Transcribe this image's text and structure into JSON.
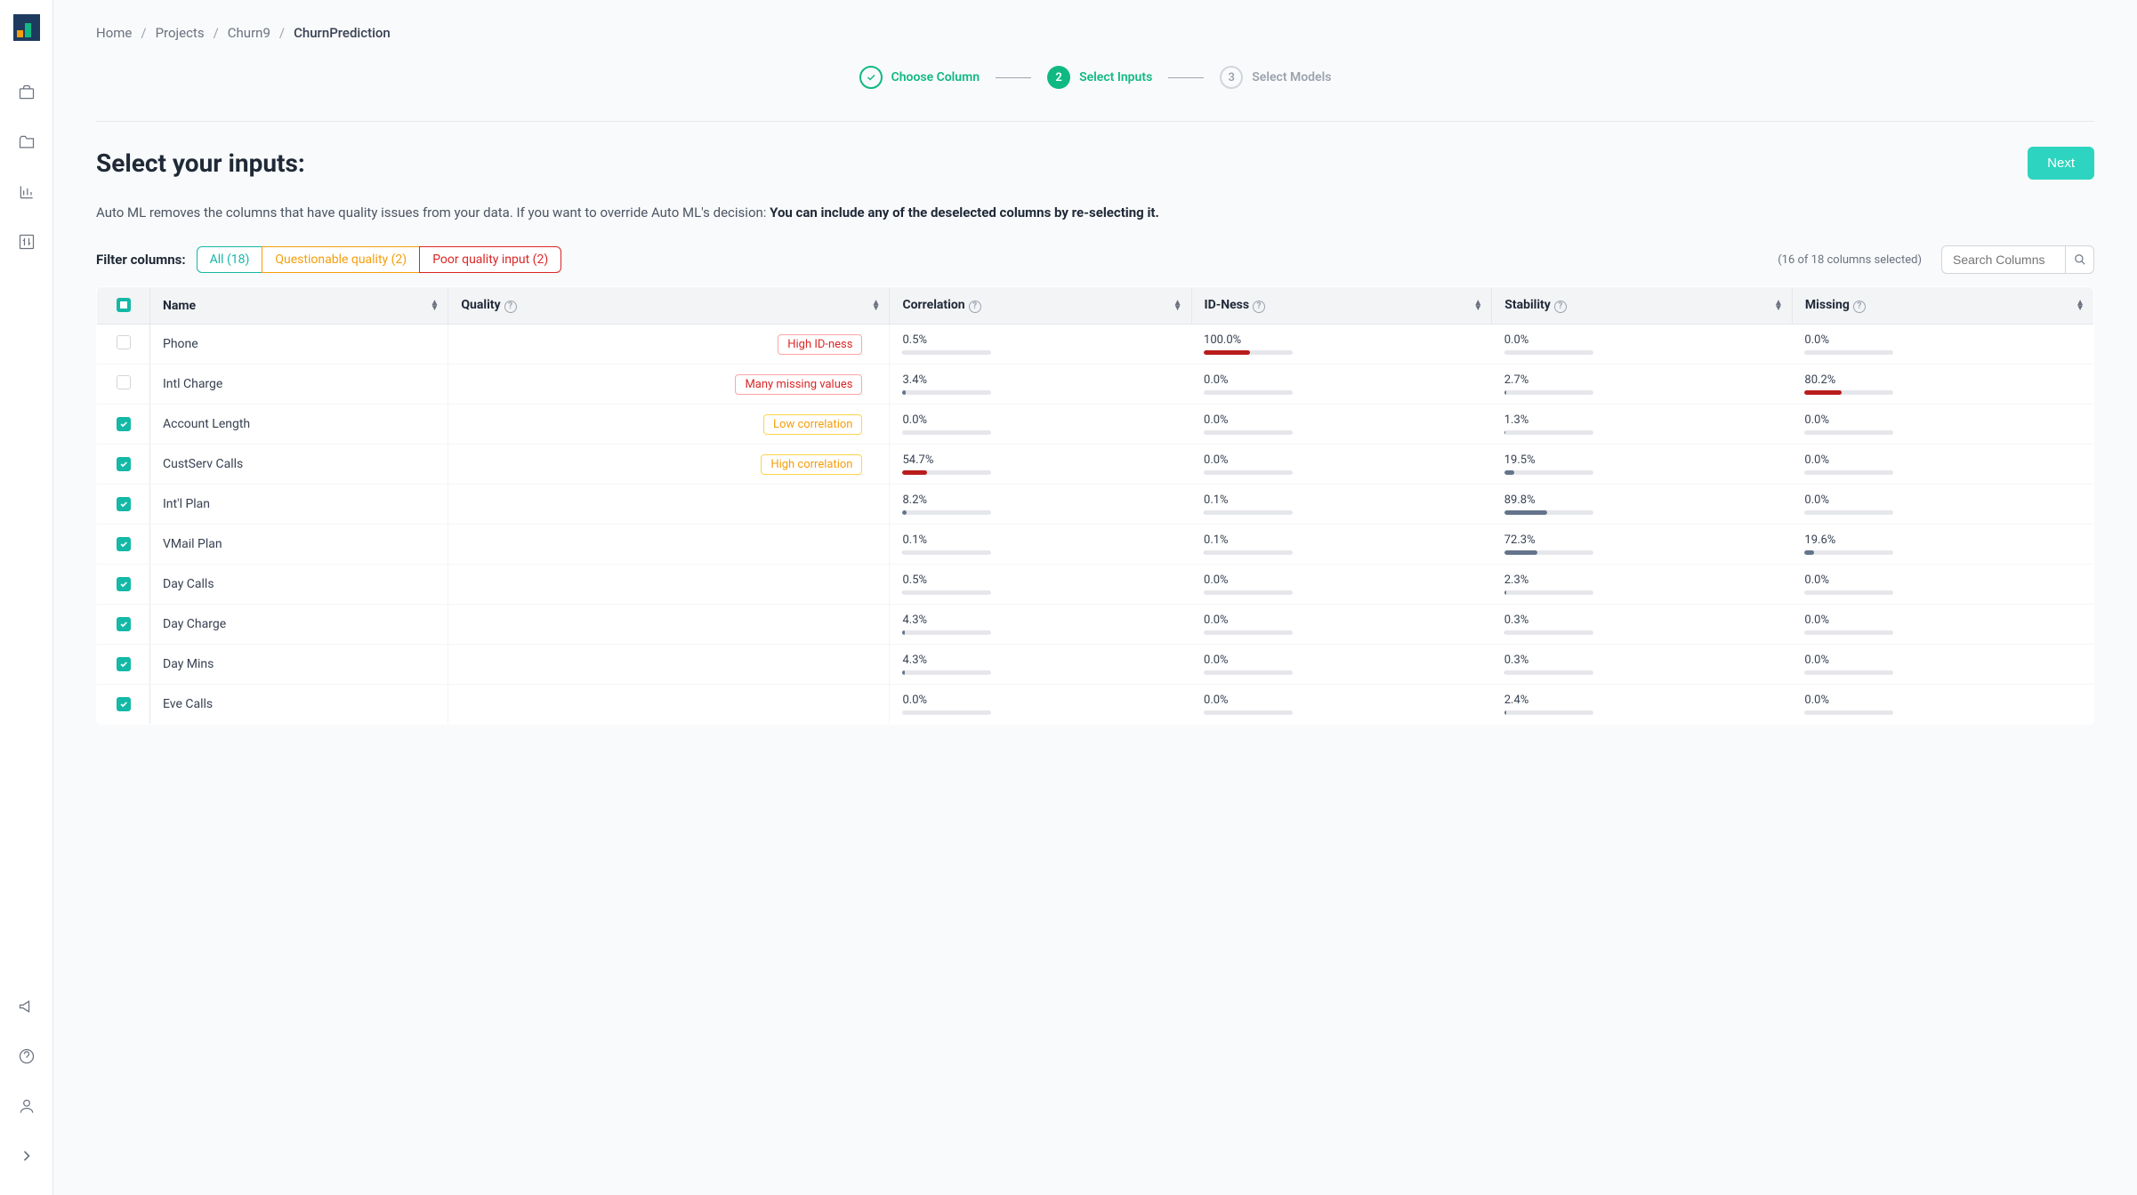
{
  "breadcrumb": {
    "home": "Home",
    "projects": "Projects",
    "project": "Churn9",
    "current": "ChurnPrediction"
  },
  "stepper": {
    "s1": "Choose Column",
    "s2": "Select Inputs",
    "s3": "Select Models"
  },
  "title": "Select your inputs:",
  "next": "Next",
  "description_prefix": "Auto ML removes the columns that have quality issues from your data. If you want to override Auto ML's decision: ",
  "description_bold": "You can include any of the deselected columns by re-selecting it.",
  "filter_label": "Filter columns:",
  "filters": {
    "all": "All (18)",
    "questionable": "Questionable quality (2)",
    "poor": "Poor quality input (2)"
  },
  "selection_summary": "(16 of 18 columns selected)",
  "search_placeholder": "Search Columns",
  "columns": {
    "name": "Name",
    "quality": "Quality",
    "correlation": "Correlation",
    "idness": "ID-Ness",
    "stability": "Stability",
    "missing": "Missing"
  },
  "rows": [
    {
      "checked": false,
      "name": "Phone",
      "tag": "High ID-ness",
      "tag_color": "red",
      "corr": "0.5%",
      "corr_w": 0.5,
      "corr_c": "gray",
      "id": "100.0%",
      "id_w": 52,
      "id_c": "red",
      "stab": "0.0%",
      "stab_w": 0,
      "stab_c": "gray",
      "miss": "0.0%",
      "miss_w": 0,
      "miss_c": "gray"
    },
    {
      "checked": false,
      "name": "Intl Charge",
      "tag": "Many missing values",
      "tag_color": "red",
      "corr": "3.4%",
      "corr_w": 3.4,
      "corr_c": "blue",
      "id": "0.0%",
      "id_w": 0,
      "id_c": "gray",
      "stab": "2.7%",
      "stab_w": 2.7,
      "stab_c": "blue",
      "miss": "80.2%",
      "miss_w": 42,
      "miss_c": "red"
    },
    {
      "checked": true,
      "name": "Account Length",
      "tag": "Low correlation",
      "tag_color": "orange",
      "corr": "0.0%",
      "corr_w": 0,
      "corr_c": "gray",
      "id": "0.0%",
      "id_w": 0,
      "id_c": "gray",
      "stab": "1.3%",
      "stab_w": 1.3,
      "stab_c": "blue",
      "miss": "0.0%",
      "miss_w": 0,
      "miss_c": "gray"
    },
    {
      "checked": true,
      "name": "CustServ Calls",
      "tag": "High correlation",
      "tag_color": "orange",
      "corr": "54.7%",
      "corr_w": 28,
      "corr_c": "red",
      "id": "0.0%",
      "id_w": 0,
      "id_c": "gray",
      "stab": "19.5%",
      "stab_w": 11,
      "stab_c": "blue",
      "miss": "0.0%",
      "miss_w": 0,
      "miss_c": "gray"
    },
    {
      "checked": true,
      "name": "Int'l Plan",
      "tag": "",
      "tag_color": "",
      "corr": "8.2%",
      "corr_w": 4.5,
      "corr_c": "blue",
      "id": "0.1%",
      "id_w": 0.5,
      "id_c": "gray",
      "stab": "89.8%",
      "stab_w": 48,
      "stab_c": "blue",
      "miss": "0.0%",
      "miss_w": 0,
      "miss_c": "gray"
    },
    {
      "checked": true,
      "name": "VMail Plan",
      "tag": "",
      "tag_color": "",
      "corr": "0.1%",
      "corr_w": 0.5,
      "corr_c": "gray",
      "id": "0.1%",
      "id_w": 0.5,
      "id_c": "gray",
      "stab": "72.3%",
      "stab_w": 37,
      "stab_c": "blue",
      "miss": "19.6%",
      "miss_w": 11,
      "miss_c": "blue"
    },
    {
      "checked": true,
      "name": "Day Calls",
      "tag": "",
      "tag_color": "",
      "corr": "0.5%",
      "corr_w": 0.5,
      "corr_c": "gray",
      "id": "0.0%",
      "id_w": 0,
      "id_c": "gray",
      "stab": "2.3%",
      "stab_w": 2.3,
      "stab_c": "blue",
      "miss": "0.0%",
      "miss_w": 0,
      "miss_c": "gray"
    },
    {
      "checked": true,
      "name": "Day Charge",
      "tag": "",
      "tag_color": "",
      "corr": "4.3%",
      "corr_w": 2.5,
      "corr_c": "blue",
      "id": "0.0%",
      "id_w": 0,
      "id_c": "gray",
      "stab": "0.3%",
      "stab_w": 0.5,
      "stab_c": "gray",
      "miss": "0.0%",
      "miss_w": 0,
      "miss_c": "gray"
    },
    {
      "checked": true,
      "name": "Day Mins",
      "tag": "",
      "tag_color": "",
      "corr": "4.3%",
      "corr_w": 2.5,
      "corr_c": "blue",
      "id": "0.0%",
      "id_w": 0,
      "id_c": "gray",
      "stab": "0.3%",
      "stab_w": 0.5,
      "stab_c": "gray",
      "miss": "0.0%",
      "miss_w": 0,
      "miss_c": "gray"
    },
    {
      "checked": true,
      "name": "Eve Calls",
      "tag": "",
      "tag_color": "",
      "corr": "0.0%",
      "corr_w": 0,
      "corr_c": "gray",
      "id": "0.0%",
      "id_w": 0,
      "id_c": "gray",
      "stab": "2.4%",
      "stab_w": 2.4,
      "stab_c": "blue",
      "miss": "0.0%",
      "miss_w": 0,
      "miss_c": "gray"
    }
  ]
}
